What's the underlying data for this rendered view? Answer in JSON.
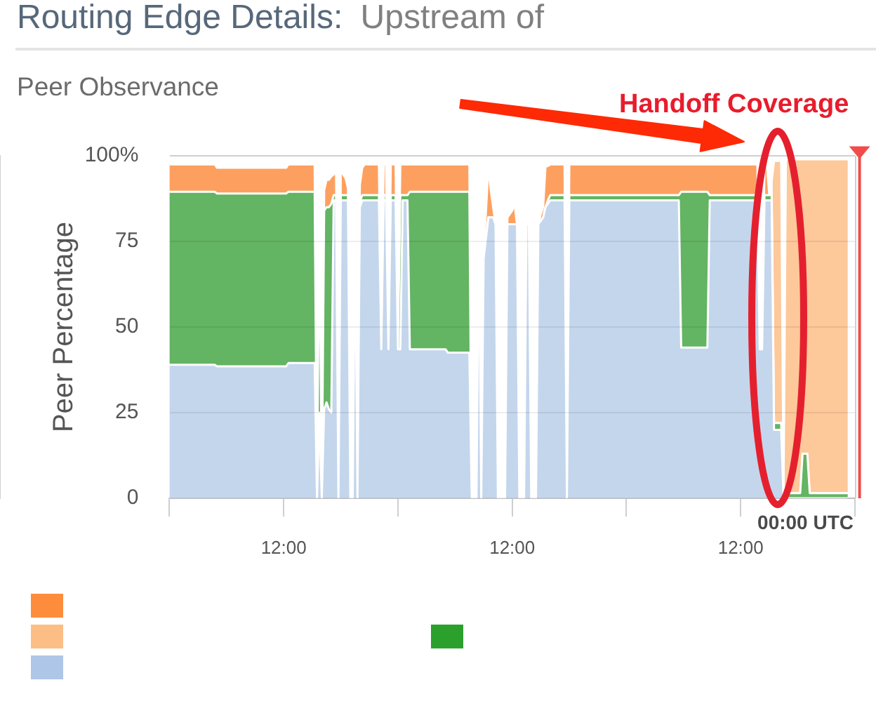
{
  "chart_data": {
    "type": "area",
    "title": "Routing Edge Details: Upstream of",
    "subtitle": "Peer Observance",
    "ylabel": "Peer Percentage",
    "annotations": [
      "Handoff Coverage",
      "00:00 UTC"
    ],
    "categories": [
      null,
      null,
      null,
      null,
      null,
      null,
      null,
      null,
      null,
      null,
      null,
      null,
      null,
      null,
      null,
      null,
      null,
      null,
      null,
      null,
      null,
      null,
      null,
      null,
      null,
      null,
      null,
      null,
      null,
      null,
      null,
      null,
      null,
      null,
      null,
      null,
      null,
      null,
      null,
      null,
      null,
      null,
      null,
      null,
      null,
      null,
      null,
      null,
      "12:00",
      null,
      null,
      null,
      null,
      null,
      null,
      null,
      null,
      null,
      null,
      null,
      null,
      null,
      null,
      null,
      null,
      null,
      null,
      null,
      null,
      null,
      null,
      null,
      null,
      null,
      null,
      null,
      null,
      null,
      null,
      null,
      null,
      null,
      null,
      null,
      null,
      null,
      null,
      null,
      null,
      null,
      null,
      null,
      null,
      null,
      null,
      null,
      null,
      null,
      null,
      null,
      null,
      null,
      null,
      null,
      null,
      null,
      null,
      null,
      null,
      null,
      null,
      null,
      null,
      null,
      null,
      null,
      null,
      null,
      null,
      null,
      null,
      null,
      null,
      null,
      null,
      null,
      null,
      null,
      null,
      null,
      null,
      null,
      null,
      null,
      null,
      null,
      null,
      null,
      null,
      null,
      null,
      null,
      null,
      null,
      "12:00",
      null,
      null,
      null,
      null,
      null,
      null,
      null,
      null,
      null,
      null,
      null,
      null,
      null,
      null,
      null,
      null,
      null,
      null,
      null,
      null,
      null,
      null,
      null,
      null,
      null,
      null,
      null,
      null,
      null,
      null,
      null,
      null,
      null,
      null,
      null,
      null,
      null,
      null,
      null,
      null,
      null,
      null,
      null,
      null,
      null,
      null,
      null,
      null,
      null,
      null,
      null,
      null,
      null,
      null,
      null,
      null,
      null,
      null,
      null,
      null,
      null,
      null,
      null,
      null,
      null,
      null,
      null,
      null,
      null,
      null,
      null,
      null,
      null,
      null,
      null,
      null,
      null,
      null,
      null,
      null,
      null,
      null,
      null,
      null,
      null,
      null,
      null,
      null,
      null,
      null,
      null,
      null,
      null,
      null,
      null,
      "12:00",
      null,
      null,
      null,
      null,
      null,
      null,
      null,
      null,
      null,
      null,
      null,
      null,
      null,
      null,
      null,
      null,
      null,
      null,
      null,
      null,
      null,
      null,
      null,
      null,
      null,
      null,
      null,
      null,
      null,
      null,
      null,
      null,
      null,
      null,
      null,
      null,
      null,
      null,
      null,
      null,
      null,
      null,
      null,
      null,
      null,
      null,
      null,
      null
    ],
    "series": [
      {
        "color": "#c4d6ec",
        "values": [
          39,
          39,
          39,
          39,
          39,
          39,
          39,
          39,
          39,
          39,
          39,
          39,
          39,
          39,
          39,
          39,
          39,
          39,
          39,
          39,
          38.5,
          38.5,
          38.5,
          38.5,
          38.5,
          38.5,
          38.5,
          38.5,
          38.5,
          38.5,
          38.5,
          38.5,
          38.5,
          38.5,
          38.5,
          38.5,
          38.5,
          38.5,
          38.5,
          38.5,
          38.5,
          38.5,
          38.5,
          38.5,
          38.5,
          38.5,
          38.5,
          38.5,
          38.5,
          38.5,
          39.5,
          39.5,
          39.5,
          39.5,
          39.5,
          39.5,
          39.5,
          39.5,
          39.5,
          39.5,
          39.5,
          39.5,
          0,
          25,
          0,
          26,
          28,
          26,
          25,
          87,
          87,
          0,
          87,
          87,
          87,
          87,
          0,
          0,
          80,
          0,
          85,
          87,
          87,
          87,
          87,
          87,
          87,
          87,
          87,
          43.5,
          87,
          87,
          43.5,
          87,
          87,
          87,
          43.5,
          43.5,
          87,
          87,
          87,
          43.5,
          43.5,
          43.5,
          43.5,
          43.5,
          43.5,
          43.5,
          43.5,
          43.5,
          43.5,
          43.5,
          43.5,
          43.5,
          43.5,
          43.5,
          43.5,
          42.5,
          42.5,
          42.5,
          42.5,
          42.5,
          42.5,
          42.5,
          42.5,
          42.5,
          42.5,
          0,
          0,
          0,
          82,
          0,
          70,
          76,
          82,
          82,
          82,
          80,
          0,
          0,
          0,
          0,
          80,
          80,
          80,
          80,
          80,
          0,
          0,
          0,
          80,
          80,
          0,
          0,
          0,
          80,
          81,
          82,
          85,
          86,
          87,
          87,
          87,
          87,
          87,
          87,
          87,
          0,
          87,
          87,
          87,
          87,
          87,
          87,
          87,
          87,
          87,
          87,
          87,
          87,
          87,
          87,
          87,
          87,
          87,
          87,
          87,
          87,
          87,
          87,
          87,
          87,
          87,
          87,
          87,
          87,
          87,
          87,
          87,
          87,
          87,
          87,
          87,
          87,
          87,
          87,
          87,
          87,
          87,
          87,
          87,
          87,
          87,
          87,
          87,
          44,
          44,
          44,
          44,
          44,
          44,
          44,
          44,
          44,
          44,
          44,
          44,
          87,
          87,
          87,
          87,
          87,
          87,
          87,
          87,
          87,
          87,
          87,
          87,
          87,
          87,
          87,
          87,
          87,
          87,
          87,
          87,
          87,
          43.5,
          43.5,
          87,
          87,
          87,
          87,
          20,
          20,
          20,
          20,
          0,
          0,
          0,
          0,
          0,
          0,
          0,
          0,
          0,
          0,
          0,
          0,
          0,
          0,
          0,
          0,
          0,
          0,
          0,
          0,
          0,
          0,
          0,
          0,
          0,
          0,
          0,
          0,
          null,
          null,
          null
        ]
      },
      {
        "color": "#63b463",
        "values": [
          50.5,
          50.5,
          50.5,
          50.5,
          50.5,
          50.5,
          50.5,
          50.5,
          50.5,
          50.5,
          50.5,
          50.5,
          50.5,
          50.5,
          50.5,
          50.5,
          50.5,
          50.5,
          50.5,
          50.5,
          50.5,
          50.5,
          50.5,
          50.5,
          50.5,
          50.5,
          50.5,
          50.5,
          50.5,
          50.5,
          50.5,
          50.5,
          50.5,
          50.5,
          50.5,
          50.5,
          50.5,
          50.5,
          50.5,
          50.5,
          50.5,
          50.5,
          50.5,
          50.5,
          50.5,
          50.5,
          50.5,
          50.5,
          50.5,
          50.5,
          50,
          50,
          50,
          50,
          50,
          50,
          50,
          50,
          50,
          50,
          50,
          50,
          0,
          60,
          0,
          58,
          57,
          59,
          61,
          1.5,
          1.5,
          0,
          1.5,
          1.5,
          1.5,
          1.5,
          0,
          0,
          0,
          0,
          1.5,
          1.5,
          1.5,
          1.5,
          1.5,
          1.5,
          1.5,
          1.5,
          1.5,
          0,
          1.5,
          1.5,
          0,
          1.5,
          1.5,
          1.5,
          0,
          45,
          1.5,
          1.5,
          1.5,
          46,
          46,
          46,
          46,
          46,
          46,
          46,
          46,
          46,
          46,
          46,
          46,
          46,
          46,
          46,
          46,
          47,
          47,
          47,
          47,
          47,
          47,
          47,
          47,
          47,
          47,
          0,
          0,
          0,
          0,
          0,
          0,
          0,
          0,
          0,
          0,
          0,
          0,
          0,
          0,
          0,
          0,
          0,
          0,
          0,
          0,
          0,
          0,
          0,
          0,
          0,
          0,
          0,
          0,
          0,
          0,
          0,
          0,
          1,
          1.5,
          1.5,
          1.5,
          1.5,
          1.5,
          1.5,
          1.5,
          0,
          1.5,
          1.5,
          1.5,
          1.5,
          1.5,
          1.5,
          1.5,
          1.5,
          1.5,
          1.5,
          1.5,
          1.5,
          1.5,
          1.5,
          1.5,
          1.5,
          1.5,
          1.5,
          1.5,
          1.5,
          1.5,
          1.5,
          1.5,
          1.5,
          1.5,
          1.5,
          1.5,
          1.5,
          1.5,
          1.5,
          1.5,
          1.5,
          1.5,
          1.5,
          1.5,
          1.5,
          1.5,
          1.5,
          1.5,
          1.5,
          1.5,
          1.5,
          1.5,
          1.5,
          1.5,
          1.5,
          1.5,
          45.5,
          45.5,
          45.5,
          45.5,
          45.5,
          45.5,
          45.5,
          45.5,
          45.5,
          45.5,
          45.5,
          45.5,
          1.5,
          1.5,
          1.5,
          1.5,
          1.5,
          1.5,
          1.5,
          1.5,
          1.5,
          1.5,
          1.5,
          1.5,
          1.5,
          1.5,
          1.5,
          1.5,
          1.5,
          1.5,
          1.5,
          1.5,
          1.5,
          0,
          0,
          1.5,
          1.5,
          1.5,
          1.5,
          2,
          2,
          2,
          2,
          0,
          1.5,
          1.5,
          1.5,
          1.5,
          1.5,
          1.5,
          1.5,
          13,
          13,
          13,
          1.5,
          1.5,
          1.5,
          1.5,
          1.5,
          1.5,
          1.5,
          1.5,
          1.5,
          1.5,
          1.5,
          1.5,
          1.5,
          1.5,
          1.5,
          1.5,
          1.5,
          null,
          null,
          null
        ]
      },
      {
        "color": "#fda05f",
        "values": [
          8,
          8,
          8,
          8,
          8,
          8,
          8,
          8,
          8,
          8,
          8,
          8,
          8,
          8,
          8,
          8,
          8,
          8,
          8,
          8,
          7.5,
          7.5,
          7.5,
          7.5,
          7.5,
          7.5,
          7.5,
          7.5,
          7.5,
          7.5,
          7.5,
          7.5,
          7.5,
          7.5,
          7.5,
          7.5,
          7.5,
          7.5,
          7.5,
          7.5,
          7.5,
          7.5,
          7.5,
          7.5,
          7.5,
          7.5,
          7.5,
          7.5,
          7.5,
          7.5,
          8,
          8,
          8,
          8,
          8,
          8,
          8,
          8,
          8,
          8,
          8,
          8,
          0,
          5,
          0,
          6,
          8,
          8,
          8,
          6,
          8,
          0,
          8,
          6,
          5,
          2,
          0,
          0,
          3,
          0,
          5,
          8,
          9,
          9,
          9,
          9,
          9,
          9,
          9,
          0,
          9,
          9,
          0,
          9,
          9,
          9,
          0,
          9,
          9,
          9,
          9,
          8,
          8,
          8,
          8,
          8,
          8,
          8,
          8,
          8,
          8,
          8,
          8,
          8,
          8,
          8,
          8,
          8,
          8,
          8,
          8,
          8,
          8,
          8,
          8,
          8,
          8,
          0,
          0,
          0,
          3,
          0,
          2,
          8,
          15,
          8,
          3,
          0,
          0,
          0,
          0,
          0,
          2,
          3,
          4,
          6,
          0,
          0,
          0,
          0,
          0,
          0,
          0,
          0,
          0,
          0,
          2,
          3,
          12,
          10,
          9,
          9,
          9,
          9,
          9,
          9,
          9,
          0,
          9,
          9,
          9,
          9,
          9,
          9,
          9,
          9,
          9,
          9,
          9,
          9,
          9,
          9,
          9,
          9,
          9,
          9,
          9,
          9,
          9,
          9,
          9,
          9,
          9,
          9,
          9,
          9,
          9,
          9,
          9,
          9,
          9,
          9,
          9,
          9,
          9,
          9,
          9,
          9,
          9,
          9,
          9,
          9,
          9,
          9,
          9,
          8,
          8,
          8,
          8,
          8,
          8,
          8,
          8,
          8,
          8,
          8,
          8,
          9,
          9,
          9,
          9,
          9,
          9,
          9,
          9,
          9,
          9,
          9,
          9,
          9,
          9,
          9,
          9,
          9,
          9,
          9,
          9,
          9,
          0,
          0,
          9,
          9,
          0,
          4,
          0,
          0,
          0,
          0,
          0,
          0,
          0,
          0,
          0,
          0,
          0,
          0,
          0,
          0,
          0,
          0,
          0,
          0,
          0,
          0,
          0,
          0,
          0,
          0,
          0,
          0,
          0,
          0,
          0,
          0,
          0,
          0,
          null,
          null,
          null
        ]
      },
      {
        "color": "#fdc89a",
        "values": [
          0,
          0,
          0,
          0,
          0,
          0,
          0,
          0,
          0,
          0,
          0,
          0,
          0,
          0,
          0,
          0,
          0,
          0,
          0,
          0,
          0,
          0,
          0,
          0,
          0,
          0,
          0,
          0,
          0,
          0,
          0,
          0,
          0,
          0,
          0,
          0,
          0,
          0,
          0,
          0,
          0,
          0,
          0,
          0,
          0,
          0,
          0,
          0,
          0,
          0,
          0,
          0,
          0,
          0,
          0,
          0,
          0,
          0,
          0,
          0,
          0,
          0,
          0,
          0,
          0,
          0,
          0,
          0,
          0,
          0,
          0,
          0,
          0,
          0,
          0,
          0,
          0,
          0,
          0,
          0,
          0,
          0,
          0,
          0,
          0,
          0,
          0,
          0,
          0,
          0,
          0,
          0,
          0,
          0,
          0,
          0,
          0,
          0,
          0,
          0,
          0,
          0,
          0,
          0,
          0,
          0,
          0,
          0,
          0,
          0,
          0,
          0,
          0,
          0,
          0,
          0,
          0,
          0,
          0,
          0,
          0,
          0,
          0,
          0,
          0,
          0,
          0,
          0,
          0,
          0,
          0,
          0,
          0,
          0,
          0,
          0,
          0,
          0,
          0,
          0,
          0,
          0,
          0,
          0,
          0,
          0,
          0,
          0,
          0,
          0,
          0,
          0,
          0,
          0,
          0,
          0,
          0,
          0,
          0,
          0,
          0,
          0,
          0,
          0,
          0,
          0,
          0,
          0,
          0,
          0,
          0,
          0,
          0,
          0,
          0,
          0,
          0,
          0,
          0,
          0,
          0,
          0,
          0,
          0,
          0,
          0,
          0,
          0,
          0,
          0,
          0,
          0,
          0,
          0,
          0,
          0,
          0,
          0,
          0,
          0,
          0,
          0,
          0,
          0,
          0,
          0,
          0,
          0,
          0,
          0,
          0,
          0,
          0,
          0,
          0,
          0,
          0,
          0,
          0,
          0,
          0,
          0,
          0,
          0,
          0,
          0,
          0,
          0,
          0,
          0,
          0,
          0,
          0,
          0,
          0,
          0,
          0,
          0,
          0,
          0,
          0,
          0,
          0,
          0,
          0,
          0,
          0,
          0,
          0,
          0,
          0,
          0,
          0,
          0,
          76.5,
          76.5,
          76.5,
          76.5,
          0,
          97.5,
          97.5,
          97.5,
          97.5,
          97.5,
          97.5,
          97.5,
          86,
          86,
          86,
          97.5,
          97.5,
          97.5,
          97.5,
          97.5,
          97.5,
          97.5,
          97.5,
          97.5,
          97.5,
          97.5,
          97.5,
          97.5,
          97.5,
          97.5,
          97.5,
          97.5,
          null,
          null,
          null
        ]
      }
    ],
    "stacked": true,
    "ylim": [
      0,
      100
    ],
    "yticks": [
      0,
      25,
      50,
      75,
      {
        "value": 100,
        "label": "100%"
      }
    ],
    "grid": "y"
  }
}
